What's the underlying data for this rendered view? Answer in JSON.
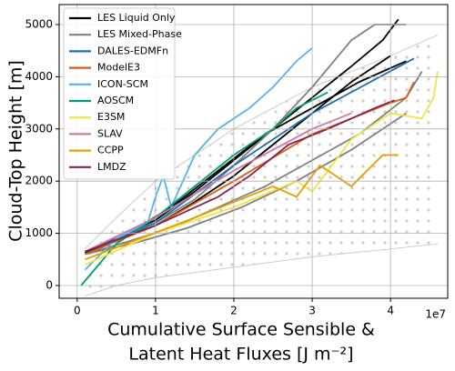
{
  "chart_data": {
    "type": "line",
    "x_label": [
      "Cumulative Surface Sensible &",
      "Latent Heat Fluxes [J m⁻²]"
    ],
    "y_label": "Cloud-Top Height [m]",
    "x_offset_label": "1e7",
    "xlim": [
      -0.23,
      4.73
    ],
    "ylim": [
      -244,
      5383
    ],
    "xticks": [
      0,
      1,
      2,
      3,
      4
    ],
    "yticks": [
      0,
      1000,
      2000,
      3000,
      4000,
      5000
    ],
    "grid": true,
    "legend": "upper left",
    "bounds": {
      "color": "#cccccc",
      "x": [
        0.1,
        0.5,
        1,
        2,
        3,
        4,
        4.6
      ],
      "upper": [
        700,
        1300,
        2000,
        3000,
        3800,
        4400,
        4800
      ],
      "lower": [
        -200,
        0,
        150,
        350,
        550,
        700,
        800
      ]
    },
    "series": [
      {
        "name": "LES Liquid Only",
        "color": "#000000",
        "lines": [
          {
            "x": [
              0.1,
              0.5,
              1,
              1.5,
              2,
              2.5,
              3,
              3.5,
              3.9,
              4.1
            ],
            "values": [
              650,
              900,
              1250,
              1800,
              2400,
              3000,
              3600,
              4200,
              4700,
              5100
            ]
          },
          {
            "x": [
              0.1,
              0.5,
              1,
              1.5,
              2,
              2.5,
              3,
              3.5,
              4
            ],
            "values": [
              600,
              850,
              1150,
              1600,
              2100,
              2700,
              3300,
              3900,
              4400
            ]
          },
          {
            "x": [
              0.1,
              0.6,
              1.2,
              1.8,
              2.4,
              3,
              3.6,
              4.2
            ],
            "values": [
              620,
              950,
              1500,
              2200,
              2900,
              3400,
              3900,
              4300
            ]
          }
        ]
      },
      {
        "name": "LES Mixed-Phase",
        "color": "#808080",
        "lines": [
          {
            "x": [
              0.1,
              0.5,
              1,
              1.5,
              2,
              2.5,
              3,
              3.5,
              3.8,
              4.2
            ],
            "values": [
              600,
              850,
              1200,
              1650,
              2300,
              3000,
              3800,
              4700,
              5000,
              5000
            ]
          },
          {
            "x": [
              0.1,
              0.6,
              1.2,
              1.8,
              2.4,
              3,
              3.6,
              4.2,
              4.4
            ],
            "values": [
              600,
              820,
              1100,
              1500,
              1900,
              2400,
              2900,
              3600,
              4100
            ]
          },
          {
            "x": [
              0.1,
              0.7,
              1.4,
              2.1,
              2.8,
              3.5,
              4.2
            ],
            "values": [
              600,
              800,
              1100,
              1500,
              2000,
              2600,
              3300
            ]
          }
        ]
      },
      {
        "name": "DALES-EDMFn",
        "color": "#1f6fb0",
        "x": [
          0.1,
          1,
          2,
          3,
          4.3
        ],
        "values": [
          650,
          1200,
          2300,
          3300,
          4350
        ]
      },
      {
        "name": "ModelE3",
        "color": "#d95f0e",
        "x": [
          0.1,
          1,
          2,
          3,
          4,
          4.2,
          4.3
        ],
        "values": [
          600,
          1150,
          2000,
          2900,
          3500,
          3600,
          3900
        ]
      },
      {
        "name": "ICON-SCM",
        "color": "#56b4e9",
        "x": [
          0.1,
          0.5,
          0.9,
          1,
          1.1,
          1.2,
          1.5,
          1.8,
          2.2,
          2.5,
          2.8,
          3.0
        ],
        "values": [
          300,
          900,
          1200,
          1700,
          2100,
          1500,
          2500,
          3000,
          3400,
          3800,
          4300,
          4550
        ]
      },
      {
        "name": "AOSCM",
        "color": "#009e73",
        "x": [
          0.05,
          0.5,
          1,
          1.5,
          2,
          2.5,
          2.8,
          3.2
        ],
        "values": [
          0,
          800,
          1300,
          1900,
          2500,
          3000,
          3400,
          3700
        ]
      },
      {
        "name": "E3SM",
        "color": "#f0e442",
        "x": [
          0.1,
          1,
          2,
          2.8,
          3,
          3.5,
          4,
          4.4,
          4.55,
          4.6
        ],
        "values": [
          400,
          1000,
          1500,
          2000,
          1800,
          2800,
          3300,
          3200,
          3600,
          4100
        ]
      },
      {
        "name": "SLAV",
        "color": "#cc79a7",
        "x": [
          0.1,
          1,
          2,
          3,
          3.5
        ],
        "values": [
          650,
          1300,
          2200,
          3000,
          3300
        ]
      },
      {
        "name": "CCPP",
        "color": "#e69f00",
        "x": [
          0.1,
          0.8,
          1.5,
          2,
          2.5,
          2.8,
          3.1,
          3.5,
          3.9,
          4.1
        ],
        "values": [
          500,
          900,
          1300,
          1600,
          1900,
          1700,
          2300,
          1900,
          2500,
          2500
        ]
      },
      {
        "name": "LMDZ",
        "color": "#882255",
        "x": [
          0.1,
          1,
          1.8,
          2.2,
          2.7,
          3.2,
          3.8,
          4.05
        ],
        "values": [
          650,
          1150,
          1700,
          2100,
          2700,
          3000,
          3400,
          3550
        ]
      }
    ]
  }
}
